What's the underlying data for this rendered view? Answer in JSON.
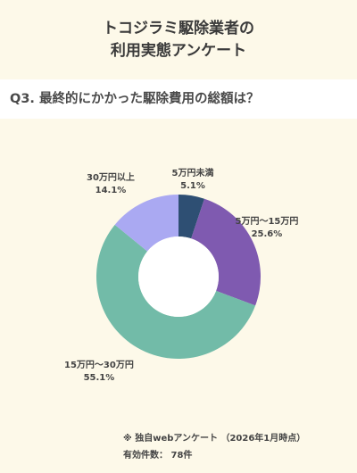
{
  "header": {
    "title_line1": "トコジラミ駆除業者の",
    "title_line2": "利用実態アンケート",
    "question": "Q3. 最終的にかかった駆除費用の総額は？"
  },
  "chart_data": {
    "type": "pie",
    "style": "donut",
    "categories": [
      "5万円未満",
      "5万円〜15万円",
      "15万円〜30万円",
      "30万円以上"
    ],
    "values": [
      5.1,
      25.6,
      55.1,
      14.1
    ],
    "value_labels": [
      "5.1%",
      "25.6%",
      "55.1%",
      "14.1%"
    ],
    "colors": [
      "#2e4f73",
      "#7f5ab0",
      "#72bba8",
      "#aaa9f2"
    ],
    "start_angle_deg": 0,
    "direction": "clockwise"
  },
  "footer": {
    "source": "※ 独自webアンケート （2026年1月時点）",
    "count": "有効件数： 78件"
  }
}
